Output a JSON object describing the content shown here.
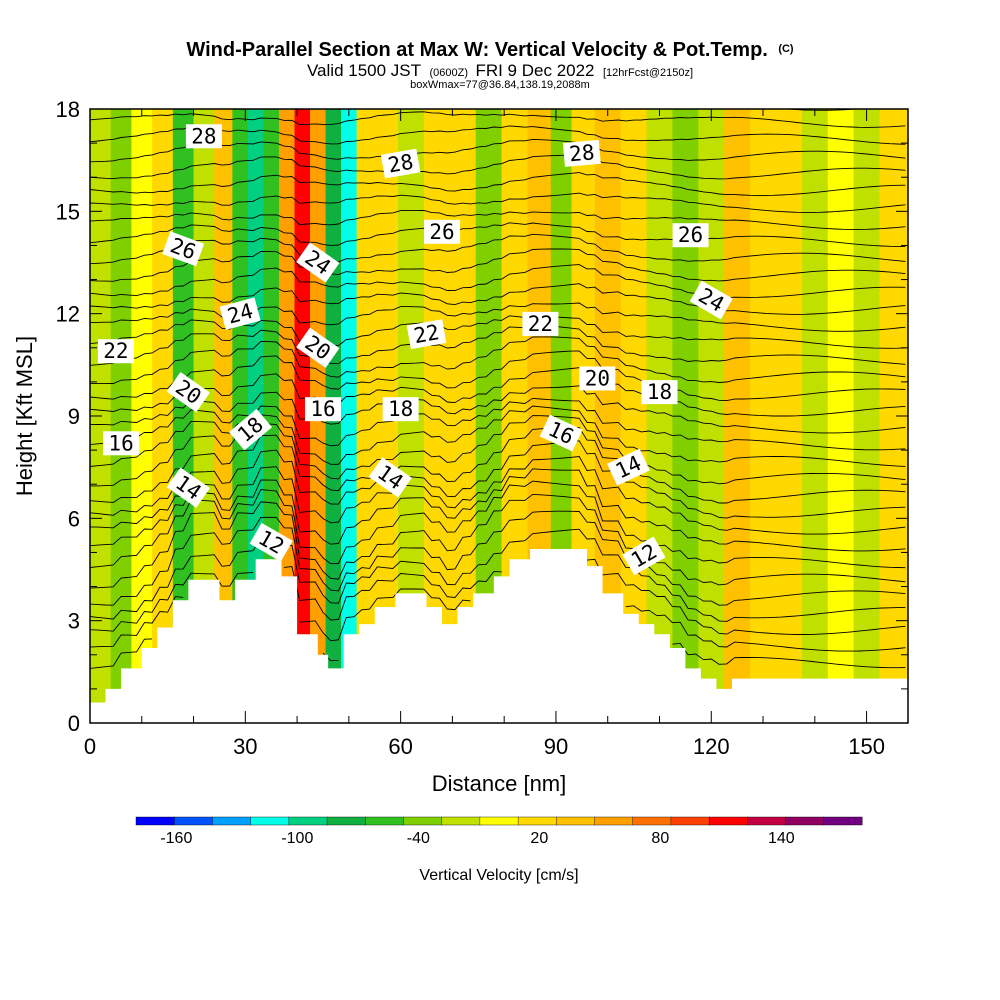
{
  "chart_data": {
    "type": "heatmap",
    "title": "Wind-Parallel Section at Max W: Vertical Velocity & Pot.Temp.",
    "title_suffix": "(C)",
    "subtitle_parts": [
      "Valid 1500 JST",
      "(0600Z)",
      "FRI 9 Dec 2022",
      "[12hrFcst@2150z]"
    ],
    "subtitle2": "boxWmax=77@36.84,138.19,2088m",
    "xlabel": "Distance [nm]",
    "ylabel": "Height [Kft MSL]",
    "xlim": [
      0,
      158
    ],
    "ylim": [
      0,
      18
    ],
    "x_ticks": [
      0,
      30,
      60,
      90,
      120,
      150
    ],
    "y_ticks": [
      0,
      3,
      6,
      9,
      12,
      15,
      18
    ],
    "colorbar": {
      "label": "Vertical Velocity [cm/s]",
      "tick_labels": [
        "-160",
        "-100",
        "-40",
        "20",
        "80",
        "140"
      ],
      "tick_values": [
        -160,
        -100,
        -40,
        20,
        80,
        140
      ],
      "range": [
        -180,
        180
      ],
      "colors": [
        "#0000ff",
        "#0050ff",
        "#00a0ff",
        "#00ffe8",
        "#00d080",
        "#10b040",
        "#30c020",
        "#80d000",
        "#c0e000",
        "#ffff00",
        "#ffd800",
        "#ffc000",
        "#ffa000",
        "#ff7000",
        "#ff4000",
        "#ff0000",
        "#c00040",
        "#900060",
        "#700080"
      ]
    },
    "terrain": [
      [
        0,
        0.6
      ],
      [
        3,
        0.6
      ],
      [
        3,
        1.0
      ],
      [
        6,
        1.0
      ],
      [
        6,
        1.6
      ],
      [
        10,
        1.6
      ],
      [
        10,
        2.2
      ],
      [
        13,
        2.2
      ],
      [
        13,
        2.8
      ],
      [
        16,
        2.8
      ],
      [
        16,
        3.6
      ],
      [
        19,
        3.6
      ],
      [
        19,
        4.2
      ],
      [
        25,
        4.2
      ],
      [
        25,
        3.6
      ],
      [
        28,
        3.6
      ],
      [
        28,
        4.2
      ],
      [
        32,
        4.2
      ],
      [
        32,
        4.8
      ],
      [
        37,
        4.8
      ],
      [
        37,
        4.3
      ],
      [
        40,
        4.3
      ],
      [
        40,
        2.6
      ],
      [
        44,
        2.6
      ],
      [
        44,
        2.0
      ],
      [
        46,
        2.0
      ],
      [
        46,
        1.6
      ],
      [
        49,
        1.6
      ],
      [
        49,
        2.6
      ],
      [
        52,
        2.6
      ],
      [
        52,
        2.9
      ],
      [
        55,
        2.9
      ],
      [
        55,
        3.4
      ],
      [
        59,
        3.4
      ],
      [
        59,
        3.8
      ],
      [
        65,
        3.8
      ],
      [
        65,
        3.4
      ],
      [
        68,
        3.4
      ],
      [
        68,
        2.9
      ],
      [
        71,
        2.9
      ],
      [
        71,
        3.4
      ],
      [
        74,
        3.4
      ],
      [
        74,
        3.8
      ],
      [
        78,
        3.8
      ],
      [
        78,
        4.3
      ],
      [
        81,
        4.3
      ],
      [
        81,
        4.8
      ],
      [
        85,
        4.8
      ],
      [
        85,
        5.1
      ],
      [
        96,
        5.1
      ],
      [
        96,
        4.6
      ],
      [
        99,
        4.6
      ],
      [
        99,
        3.8
      ],
      [
        103,
        3.8
      ],
      [
        103,
        3.2
      ],
      [
        106,
        3.2
      ],
      [
        106,
        2.9
      ],
      [
        109,
        2.9
      ],
      [
        109,
        2.6
      ],
      [
        112,
        2.6
      ],
      [
        112,
        2.2
      ],
      [
        115,
        2.2
      ],
      [
        115,
        1.6
      ],
      [
        118,
        1.6
      ],
      [
        118,
        1.3
      ],
      [
        121,
        1.3
      ],
      [
        121,
        1.0
      ],
      [
        124,
        1.0
      ],
      [
        124,
        1.3
      ],
      [
        158,
        1.3
      ]
    ],
    "w_columns": [
      {
        "x": 2,
        "w": -10
      },
      {
        "x": 6,
        "w": -30
      },
      {
        "x": 10,
        "w": 0
      },
      {
        "x": 14,
        "w": 10
      },
      {
        "x": 18,
        "w": -50
      },
      {
        "x": 22,
        "w": -20
      },
      {
        "x": 26,
        "w": 40
      },
      {
        "x": 29,
        "w": -60
      },
      {
        "x": 32,
        "w": -100
      },
      {
        "x": 35,
        "w": -60
      },
      {
        "x": 38,
        "w": 60
      },
      {
        "x": 41,
        "w": 120
      },
      {
        "x": 44,
        "w": 60
      },
      {
        "x": 47,
        "w": -70
      },
      {
        "x": 50,
        "w": -110
      },
      {
        "x": 53,
        "w": 20
      },
      {
        "x": 57,
        "w": 10
      },
      {
        "x": 62,
        "w": -20
      },
      {
        "x": 67,
        "w": 20
      },
      {
        "x": 72,
        "w": 10
      },
      {
        "x": 77,
        "w": -40
      },
      {
        "x": 82,
        "w": 20
      },
      {
        "x": 87,
        "w": 30
      },
      {
        "x": 91,
        "w": -40
      },
      {
        "x": 95,
        "w": 20
      },
      {
        "x": 100,
        "w": 30
      },
      {
        "x": 105,
        "w": 10
      },
      {
        "x": 110,
        "w": -20
      },
      {
        "x": 115,
        "w": -40
      },
      {
        "x": 120,
        "w": -20
      },
      {
        "x": 125,
        "w": 30
      },
      {
        "x": 130,
        "w": 20
      },
      {
        "x": 135,
        "w": 10
      },
      {
        "x": 140,
        "w": -10
      },
      {
        "x": 145,
        "w": 0
      },
      {
        "x": 150,
        "w": -10
      },
      {
        "x": 155,
        "w": 10
      }
    ],
    "contour_labels": [
      {
        "text": "28",
        "x": 22,
        "y": 17.2,
        "angle": 0
      },
      {
        "text": "26",
        "x": 18,
        "y": 13.9,
        "angle": 20
      },
      {
        "text": "24",
        "x": 29,
        "y": 12.0,
        "angle": -15
      },
      {
        "text": "22",
        "x": 5,
        "y": 10.9,
        "angle": 0
      },
      {
        "text": "20",
        "x": 19,
        "y": 9.7,
        "angle": 35
      },
      {
        "text": "16",
        "x": 6,
        "y": 8.2,
        "angle": 0
      },
      {
        "text": "18",
        "x": 31,
        "y": 8.6,
        "angle": -40
      },
      {
        "text": "14",
        "x": 19,
        "y": 6.9,
        "angle": 35
      },
      {
        "text": "12",
        "x": 35,
        "y": 5.3,
        "angle": 30
      },
      {
        "text": "24",
        "x": 44,
        "y": 13.5,
        "angle": 35
      },
      {
        "text": "20",
        "x": 44,
        "y": 11.0,
        "angle": 35
      },
      {
        "text": "16",
        "x": 45,
        "y": 9.2,
        "angle": 0
      },
      {
        "text": "28",
        "x": 60,
        "y": 16.4,
        "angle": -10
      },
      {
        "text": "26",
        "x": 68,
        "y": 14.4,
        "angle": 0
      },
      {
        "text": "22",
        "x": 65,
        "y": 11.4,
        "angle": -10
      },
      {
        "text": "18",
        "x": 60,
        "y": 9.2,
        "angle": 0
      },
      {
        "text": "14",
        "x": 58,
        "y": 7.2,
        "angle": 35
      },
      {
        "text": "28",
        "x": 95,
        "y": 16.7,
        "angle": -5
      },
      {
        "text": "22",
        "x": 87,
        "y": 11.7,
        "angle": 0
      },
      {
        "text": "20",
        "x": 98,
        "y": 10.1,
        "angle": 0
      },
      {
        "text": "16",
        "x": 91,
        "y": 8.5,
        "angle": 25
      },
      {
        "text": "18",
        "x": 110,
        "y": 9.7,
        "angle": 0
      },
      {
        "text": "14",
        "x": 104,
        "y": 7.5,
        "angle": -25
      },
      {
        "text": "12",
        "x": 107,
        "y": 4.9,
        "angle": -30
      },
      {
        "text": "26",
        "x": 116,
        "y": 14.3,
        "angle": 0
      },
      {
        "text": "24",
        "x": 120,
        "y": 12.4,
        "angle": 30
      }
    ]
  }
}
